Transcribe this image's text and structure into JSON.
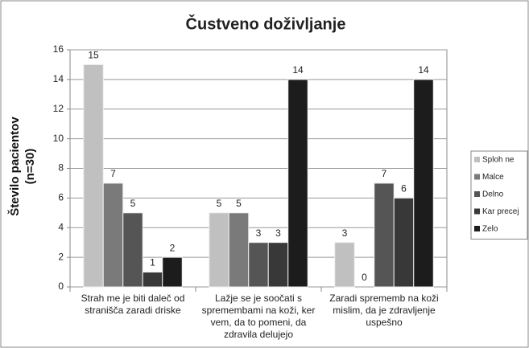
{
  "chart_data": {
    "type": "bar",
    "title": "Čustveno doživljanje",
    "y_label": "Število pacientov (n=30)",
    "categories": [
      "Strah me je biti daleč od stranišča zaradi driske",
      "Lažje se je soočati s spremembami na koži, ker vem, da to pomeni, da zdravila delujejo",
      "Zaradi sprememb na koži mislim, da je zdravljenje uspešno"
    ],
    "series": [
      {
        "name": "Sploh ne",
        "color": "#c0c0c0",
        "values": [
          15,
          5,
          3
        ]
      },
      {
        "name": "Malce",
        "color": "#7a7a7a",
        "values": [
          7,
          5,
          0
        ]
      },
      {
        "name": "Delno",
        "color": "#555555",
        "values": [
          5,
          3,
          7
        ]
      },
      {
        "name": "Kar precej",
        "color": "#383838",
        "values": [
          1,
          3,
          6
        ]
      },
      {
        "name": "Zelo",
        "color": "#1c1c1c",
        "values": [
          2,
          14,
          14
        ]
      }
    ],
    "ylim": [
      0,
      16
    ],
    "yticks": [
      0,
      2,
      4,
      6,
      8,
      10,
      12,
      14,
      16
    ],
    "grid": true,
    "legend": "right"
  }
}
